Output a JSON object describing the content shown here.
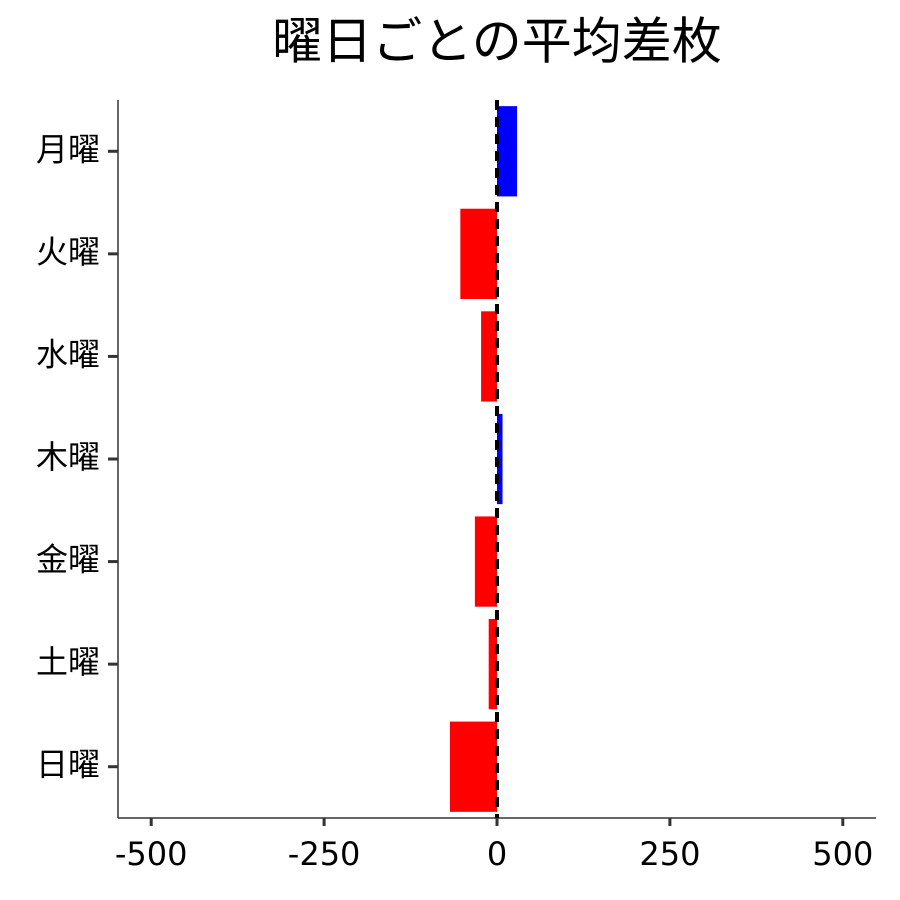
{
  "chart_data": {
    "type": "barh",
    "title": "曜日ごとの平均差枚",
    "categories": [
      "月曜",
      "火曜",
      "水曜",
      "木曜",
      "金曜",
      "土曜",
      "日曜"
    ],
    "values": [
      29,
      -53,
      -23,
      8,
      -32,
      -12,
      -68
    ],
    "colors": [
      "#0000ff",
      "#ff0000",
      "#ff0000",
      "#0000ff",
      "#ff0000",
      "#ff0000",
      "#ff0000"
    ],
    "xlim": [
      -548,
      548
    ],
    "xticks": [
      -500,
      -250,
      0,
      250,
      500
    ],
    "reference_line": 0
  }
}
